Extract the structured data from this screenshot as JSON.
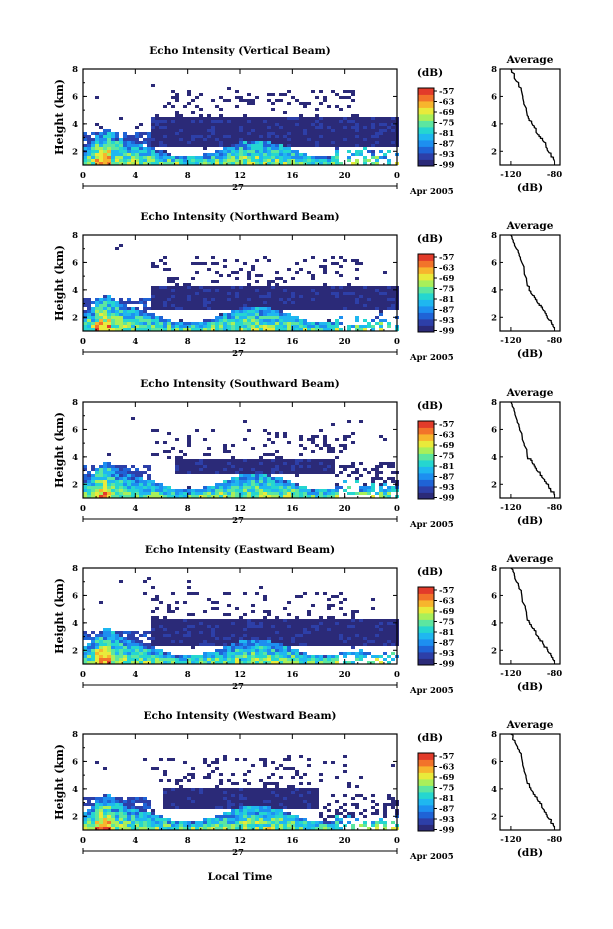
{
  "colorbar": {
    "unit": "(dB)",
    "ticks": [
      "-57",
      "-63",
      "-69",
      "-75",
      "-81",
      "-87",
      "-93",
      "-99"
    ],
    "min": -99,
    "max": -57,
    "colors": [
      "#2b2a78",
      "#2d3fa8",
      "#1f63d6",
      "#1d8ff0",
      "#1fb7f0",
      "#25d6d0",
      "#5ce6a0",
      "#a9ef5a",
      "#e9ea3b",
      "#f7b52d",
      "#f2732a",
      "#e23b2a"
    ]
  },
  "shared": {
    "date_label": "27",
    "month_label": "Apr 2005",
    "x_tick_labels": [
      "0",
      "4",
      "8",
      "12",
      "16",
      "20",
      "0"
    ],
    "y_tick_labels": [
      "2",
      "4",
      "6",
      "8"
    ],
    "avg_title": "Average",
    "avg_xlabel": "(dB)",
    "xlabel": "Local Time"
  },
  "panels": [
    {
      "title": "Echo Intensity (Vertical Beam)",
      "ylabel": "Height (km)",
      "avg_xticks": [
        "-120",
        "-80"
      ]
    },
    {
      "title": "Echo Intensity (Northward Beam)",
      "ylabel": "Height (km)",
      "avg_xticks": [
        "-120",
        "-80"
      ]
    },
    {
      "title": "Echo Intensity (Southward Beam)",
      "ylabel": "Height (km)",
      "avg_xticks": [
        "-120",
        "-80"
      ]
    },
    {
      "title": "Echo Intensity (Eastward Beam)",
      "ylabel": "Height (km)",
      "avg_xticks": [
        "-120",
        "-80"
      ]
    },
    {
      "title": "Echo Intensity (Westward Beam)",
      "ylabel": "Height (km)",
      "avg_xticks": [
        "-120",
        "-80"
      ]
    }
  ],
  "chart_data": [
    {
      "type": "heatmap",
      "title": "Echo Intensity (Vertical Beam)",
      "xlabel": "",
      "ylabel": "Height (km)",
      "xlim": [
        0,
        24
      ],
      "ylim": [
        1,
        8
      ],
      "x_ticks": [
        0,
        4,
        8,
        12,
        16,
        20,
        24
      ],
      "y_ticks": [
        2,
        4,
        6,
        8
      ],
      "colorbar_range_dB": [
        -99,
        -57
      ],
      "strong_layer": {
        "time_h": [
          5,
          24
        ],
        "top_km": 4.6,
        "bottom_km": 2.4
      },
      "sparse_echo_top_km": 6.6,
      "average_profile": {
        "x_dB": [
          -120,
          -115,
          -110,
          -105,
          -100,
          -95,
          -90,
          -85,
          -80
        ],
        "height_km": [
          8.0,
          7.1,
          6.3,
          4.6,
          3.9,
          3.2,
          2.7,
          1.9,
          1.3
        ],
        "xlim": [
          -130,
          -75
        ]
      }
    },
    {
      "type": "heatmap",
      "title": "Echo Intensity (Northward Beam)",
      "xlabel": "",
      "ylabel": "Height (km)",
      "xlim": [
        0,
        24
      ],
      "ylim": [
        1,
        8
      ],
      "x_ticks": [
        0,
        4,
        8,
        12,
        16,
        20,
        24
      ],
      "y_ticks": [
        2,
        4,
        6,
        8
      ],
      "colorbar_range_dB": [
        -99,
        -57
      ],
      "strong_layer": {
        "time_h": [
          5,
          24
        ],
        "top_km": 4.3,
        "bottom_km": 2.6
      },
      "sparse_echo_top_km": 6.5,
      "average_profile": {
        "x_dB": [
          -120,
          -115,
          -110,
          -105,
          -100,
          -95,
          -90,
          -85,
          -80
        ],
        "height_km": [
          8.0,
          7.0,
          6.0,
          4.3,
          3.6,
          3.0,
          2.5,
          1.8,
          1.2
        ],
        "xlim": [
          -130,
          -75
        ]
      }
    },
    {
      "type": "heatmap",
      "title": "Echo Intensity (Southward Beam)",
      "xlabel": "",
      "ylabel": "Height (km)",
      "xlim": [
        0,
        24
      ],
      "ylim": [
        1,
        8
      ],
      "x_ticks": [
        0,
        4,
        8,
        12,
        16,
        20,
        24
      ],
      "y_ticks": [
        2,
        4,
        6,
        8
      ],
      "colorbar_range_dB": [
        -99,
        -57
      ],
      "strong_layer": {
        "time_h": [
          7,
          19
        ],
        "top_km": 4.0,
        "bottom_km": 2.8
      },
      "sparse_echo_top_km": 6.2,
      "average_profile": {
        "x_dB": [
          -120,
          -115,
          -110,
          -105,
          -100,
          -95,
          -90,
          -85,
          -80
        ],
        "height_km": [
          8.0,
          6.8,
          5.7,
          4.0,
          3.5,
          2.9,
          2.4,
          1.7,
          1.2
        ],
        "xlim": [
          -130,
          -75
        ]
      }
    },
    {
      "type": "heatmap",
      "title": "Echo Intensity (Eastward Beam)",
      "xlabel": "",
      "ylabel": "Height (km)",
      "xlim": [
        0,
        24
      ],
      "ylim": [
        1,
        8
      ],
      "x_ticks": [
        0,
        4,
        8,
        12,
        16,
        20,
        24
      ],
      "y_ticks": [
        2,
        4,
        6,
        8
      ],
      "colorbar_range_dB": [
        -99,
        -57
      ],
      "strong_layer": {
        "time_h": [
          5,
          24
        ],
        "top_km": 4.4,
        "bottom_km": 2.5
      },
      "sparse_echo_top_km": 6.3,
      "average_profile": {
        "x_dB": [
          -120,
          -115,
          -110,
          -105,
          -100,
          -95,
          -90,
          -85,
          -80
        ],
        "height_km": [
          8.0,
          7.0,
          6.0,
          4.2,
          3.6,
          3.0,
          2.4,
          1.8,
          1.2
        ],
        "xlim": [
          -130,
          -75
        ]
      }
    },
    {
      "type": "heatmap",
      "title": "Echo Intensity (Westward Beam)",
      "xlabel": "Local Time",
      "ylabel": "Height (km)",
      "xlim": [
        0,
        24
      ],
      "ylim": [
        1,
        8
      ],
      "x_ticks": [
        0,
        4,
        8,
        12,
        16,
        20,
        24
      ],
      "y_ticks": [
        2,
        4,
        6,
        8
      ],
      "colorbar_range_dB": [
        -99,
        -57
      ],
      "strong_layer": {
        "time_h": [
          6,
          18
        ],
        "top_km": 4.1,
        "bottom_km": 2.7
      },
      "sparse_echo_top_km": 6.5,
      "average_profile": {
        "x_dB": [
          -120,
          -115,
          -110,
          -105,
          -100,
          -95,
          -90,
          -85,
          -80
        ],
        "height_km": [
          8.0,
          7.2,
          6.2,
          4.4,
          3.8,
          3.1,
          2.5,
          1.8,
          1.2
        ],
        "xlim": [
          -130,
          -75
        ]
      }
    }
  ]
}
